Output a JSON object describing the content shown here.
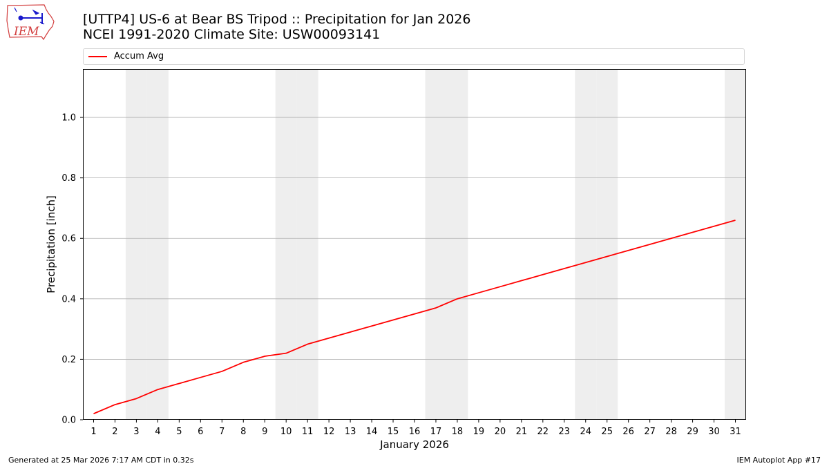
{
  "header": {
    "title_line1": "[UTTP4] US-6 at Bear BS Tripod  :: Precipitation for Jan 2026",
    "title_line2": "NCEI 1991-2020 Climate Site: USW00093141",
    "logo_text": "IEM"
  },
  "footer": {
    "left": "Generated at 25 Mar 2026 7:17 AM CDT in 0.32s",
    "right": "IEM Autoplot App #17"
  },
  "colors": {
    "line": "#ff0000",
    "weekend_band": "#eeeeee",
    "grid": "#b0b0b0"
  },
  "chart_data": {
    "type": "line",
    "title": "[UTTP4] US-6 at Bear BS Tripod  :: Precipitation for Jan 2026",
    "xlabel": "January 2026",
    "ylabel": "Precipitation [inch]",
    "x": [
      1,
      2,
      3,
      4,
      5,
      6,
      7,
      8,
      9,
      10,
      11,
      12,
      13,
      14,
      15,
      16,
      17,
      18,
      19,
      20,
      21,
      22,
      23,
      24,
      25,
      26,
      27,
      28,
      29,
      30,
      31
    ],
    "xlim": [
      0.5,
      31.5
    ],
    "ylim": [
      0,
      1.16
    ],
    "yticks": [
      0.0,
      0.2,
      0.4,
      0.6,
      0.8,
      1.0
    ],
    "ytick_labels": [
      "0.0",
      "0.2",
      "0.4",
      "0.6",
      "0.8",
      "1.0"
    ],
    "grid": "y",
    "legend_position": "top",
    "weekend_days": [
      3,
      4,
      10,
      11,
      17,
      18,
      24,
      25,
      31
    ],
    "series": [
      {
        "name": "Accum Avg",
        "color": "#ff0000",
        "values": [
          0.02,
          0.05,
          0.07,
          0.1,
          0.12,
          0.14,
          0.16,
          0.19,
          0.21,
          0.22,
          0.25,
          0.27,
          0.29,
          0.31,
          0.33,
          0.35,
          0.37,
          0.4,
          0.42,
          0.44,
          0.46,
          0.48,
          0.5,
          0.52,
          0.54,
          0.56,
          0.58,
          0.6,
          0.62,
          0.64,
          0.66
        ]
      }
    ]
  }
}
